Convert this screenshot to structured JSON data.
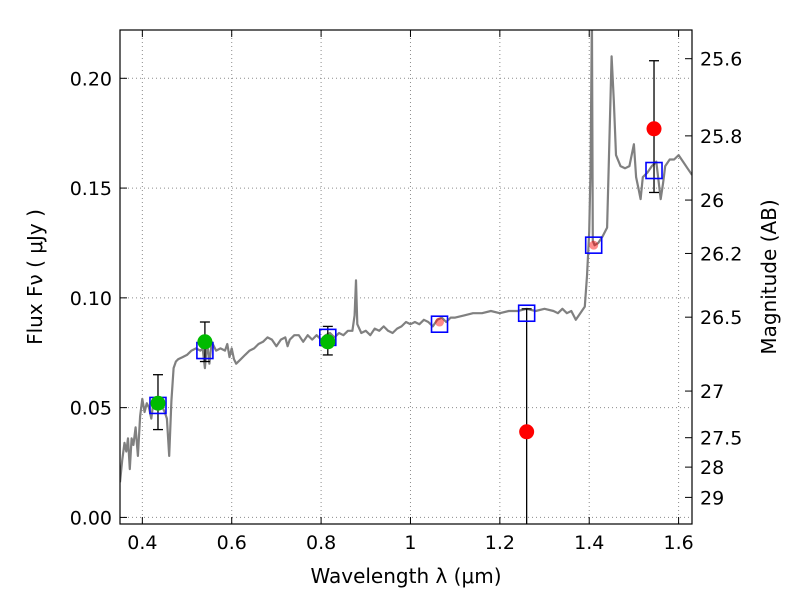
{
  "chart_data": {
    "type": "scatter",
    "xlabel": "Wavelength  λ (μm)",
    "ylabel": "Flux  Fν  ( μJy )",
    "y2label": "Magnitude (AB)",
    "xlim": [
      0.35,
      1.63
    ],
    "ylim": [
      -0.003,
      0.222
    ],
    "grid": true,
    "x_ticks": [
      0.4,
      0.6,
      0.8,
      1.0,
      1.2,
      1.4,
      1.6
    ],
    "x_tick_labels": [
      "0.4",
      "0.6",
      "0.8",
      "1",
      "1.2",
      "1.4",
      "1.6"
    ],
    "y_ticks": [
      0.0,
      0.05,
      0.1,
      0.15,
      0.2
    ],
    "y_tick_labels": [
      "0.00",
      "0.05",
      "0.10",
      "0.15",
      "0.20"
    ],
    "right_ticks": [
      {
        "label": "25.6",
        "mag": 25.6
      },
      {
        "label": "25.8",
        "mag": 25.8
      },
      {
        "label": "26",
        "mag": 26.0
      },
      {
        "label": "26.2",
        "mag": 26.2
      },
      {
        "label": "26.5",
        "mag": 26.5
      },
      {
        "label": "27",
        "mag": 27.0
      },
      {
        "label": "27.5",
        "mag": 27.5
      },
      {
        "label": "28",
        "mag": 28.0
      },
      {
        "label": "29",
        "mag": 29.0
      }
    ],
    "colors": {
      "template": "#808080",
      "model": "#0000ff",
      "detection": "#00bb00",
      "upper_limit": "#ff0000",
      "errorbar": "#000000",
      "grid": "#8c8c8c"
    },
    "template_spectrum": [
      [
        0.35,
        0.016
      ],
      [
        0.355,
        0.026
      ],
      [
        0.36,
        0.034
      ],
      [
        0.364,
        0.03
      ],
      [
        0.368,
        0.036
      ],
      [
        0.372,
        0.022
      ],
      [
        0.376,
        0.036
      ],
      [
        0.38,
        0.033
      ],
      [
        0.385,
        0.041
      ],
      [
        0.39,
        0.028
      ],
      [
        0.395,
        0.046
      ],
      [
        0.4,
        0.054
      ],
      [
        0.405,
        0.048
      ],
      [
        0.41,
        0.052
      ],
      [
        0.415,
        0.05
      ],
      [
        0.42,
        0.045
      ],
      [
        0.425,
        0.053
      ],
      [
        0.43,
        0.05
      ],
      [
        0.435,
        0.052
      ],
      [
        0.44,
        0.052
      ],
      [
        0.445,
        0.05
      ],
      [
        0.45,
        0.048
      ],
      [
        0.455,
        0.045
      ],
      [
        0.46,
        0.028
      ],
      [
        0.465,
        0.053
      ],
      [
        0.47,
        0.068
      ],
      [
        0.475,
        0.071
      ],
      [
        0.48,
        0.072
      ],
      [
        0.49,
        0.073
      ],
      [
        0.5,
        0.074
      ],
      [
        0.51,
        0.076
      ],
      [
        0.52,
        0.077
      ],
      [
        0.53,
        0.076
      ],
      [
        0.535,
        0.077
      ],
      [
        0.54,
        0.068
      ],
      [
        0.545,
        0.08
      ],
      [
        0.55,
        0.07
      ],
      [
        0.555,
        0.08
      ],
      [
        0.565,
        0.076
      ],
      [
        0.575,
        0.077
      ],
      [
        0.585,
        0.076
      ],
      [
        0.59,
        0.079
      ],
      [
        0.595,
        0.073
      ],
      [
        0.6,
        0.077
      ],
      [
        0.605,
        0.072
      ],
      [
        0.61,
        0.07
      ],
      [
        0.62,
        0.072
      ],
      [
        0.63,
        0.074
      ],
      [
        0.64,
        0.076
      ],
      [
        0.65,
        0.077
      ],
      [
        0.66,
        0.079
      ],
      [
        0.67,
        0.08
      ],
      [
        0.68,
        0.082
      ],
      [
        0.69,
        0.081
      ],
      [
        0.7,
        0.078
      ],
      [
        0.71,
        0.081
      ],
      [
        0.72,
        0.082
      ],
      [
        0.725,
        0.078
      ],
      [
        0.73,
        0.081
      ],
      [
        0.74,
        0.083
      ],
      [
        0.75,
        0.083
      ],
      [
        0.76,
        0.08
      ],
      [
        0.77,
        0.083
      ],
      [
        0.78,
        0.081
      ],
      [
        0.79,
        0.083
      ],
      [
        0.8,
        0.081
      ],
      [
        0.81,
        0.083
      ],
      [
        0.82,
        0.084
      ],
      [
        0.83,
        0.082
      ],
      [
        0.84,
        0.084
      ],
      [
        0.85,
        0.083
      ],
      [
        0.86,
        0.085
      ],
      [
        0.87,
        0.085
      ],
      [
        0.875,
        0.092
      ],
      [
        0.878,
        0.108
      ],
      [
        0.881,
        0.088
      ],
      [
        0.89,
        0.084
      ],
      [
        0.9,
        0.085
      ],
      [
        0.91,
        0.083
      ],
      [
        0.92,
        0.086
      ],
      [
        0.93,
        0.085
      ],
      [
        0.94,
        0.087
      ],
      [
        0.95,
        0.085
      ],
      [
        0.96,
        0.084
      ],
      [
        0.97,
        0.086
      ],
      [
        0.98,
        0.087
      ],
      [
        0.99,
        0.089
      ],
      [
        1.0,
        0.088
      ],
      [
        1.01,
        0.089
      ],
      [
        1.02,
        0.088
      ],
      [
        1.03,
        0.09
      ],
      [
        1.04,
        0.089
      ],
      [
        1.05,
        0.087
      ],
      [
        1.06,
        0.09
      ],
      [
        1.07,
        0.091
      ],
      [
        1.08,
        0.089
      ],
      [
        1.09,
        0.091
      ],
      [
        1.1,
        0.091
      ],
      [
        1.12,
        0.092
      ],
      [
        1.14,
        0.093
      ],
      [
        1.16,
        0.093
      ],
      [
        1.18,
        0.094
      ],
      [
        1.2,
        0.093
      ],
      [
        1.22,
        0.094
      ],
      [
        1.24,
        0.094
      ],
      [
        1.26,
        0.095
      ],
      [
        1.28,
        0.094
      ],
      [
        1.3,
        0.095
      ],
      [
        1.32,
        0.094
      ],
      [
        1.33,
        0.093
      ],
      [
        1.34,
        0.095
      ],
      [
        1.35,
        0.093
      ],
      [
        1.36,
        0.094
      ],
      [
        1.37,
        0.09
      ],
      [
        1.38,
        0.093
      ],
      [
        1.39,
        0.096
      ],
      [
        1.395,
        0.11
      ],
      [
        1.4,
        0.13
      ],
      [
        1.403,
        0.16
      ],
      [
        1.406,
        0.23
      ],
      [
        1.408,
        0.126
      ],
      [
        1.412,
        0.124
      ],
      [
        1.42,
        0.125
      ],
      [
        1.43,
        0.128
      ],
      [
        1.44,
        0.132
      ],
      [
        1.445,
        0.17
      ],
      [
        1.45,
        0.21
      ],
      [
        1.455,
        0.19
      ],
      [
        1.46,
        0.165
      ],
      [
        1.47,
        0.16
      ],
      [
        1.48,
        0.159
      ],
      [
        1.49,
        0.16
      ],
      [
        1.5,
        0.17
      ],
      [
        1.505,
        0.155
      ],
      [
        1.51,
        0.15
      ],
      [
        1.515,
        0.145
      ],
      [
        1.52,
        0.155
      ],
      [
        1.53,
        0.157
      ],
      [
        1.54,
        0.16
      ],
      [
        1.55,
        0.162
      ],
      [
        1.56,
        0.145
      ],
      [
        1.565,
        0.152
      ],
      [
        1.57,
        0.16
      ],
      [
        1.58,
        0.163
      ],
      [
        1.59,
        0.163
      ],
      [
        1.6,
        0.165
      ],
      [
        1.61,
        0.162
      ],
      [
        1.62,
        0.159
      ],
      [
        1.63,
        0.156
      ]
    ],
    "model_fluxes": [
      {
        "x": 0.435,
        "y": 0.051
      },
      {
        "x": 0.54,
        "y": 0.076
      },
      {
        "x": 0.815,
        "y": 0.082
      },
      {
        "x": 1.065,
        "y": 0.088
      },
      {
        "x": 1.26,
        "y": 0.093
      },
      {
        "x": 1.41,
        "y": 0.124
      },
      {
        "x": 1.545,
        "y": 0.158
      }
    ],
    "detections": [
      {
        "x": 0.435,
        "y": 0.052,
        "err_lo": 0.04,
        "err_hi": 0.065
      },
      {
        "x": 0.54,
        "y": 0.08,
        "err_lo": 0.071,
        "err_hi": 0.089
      },
      {
        "x": 0.815,
        "y": 0.08,
        "err_lo": 0.074,
        "err_hi": 0.087
      }
    ],
    "low_significance": [
      {
        "x": 1.065,
        "y": 0.089
      },
      {
        "x": 1.26,
        "y": 0.039,
        "err_lo": -0.003,
        "err_hi": 0.095
      },
      {
        "x": 1.41,
        "y": 0.124
      },
      {
        "x": 1.545,
        "y": 0.177,
        "err_lo": 0.148,
        "err_hi": 0.208
      }
    ]
  }
}
